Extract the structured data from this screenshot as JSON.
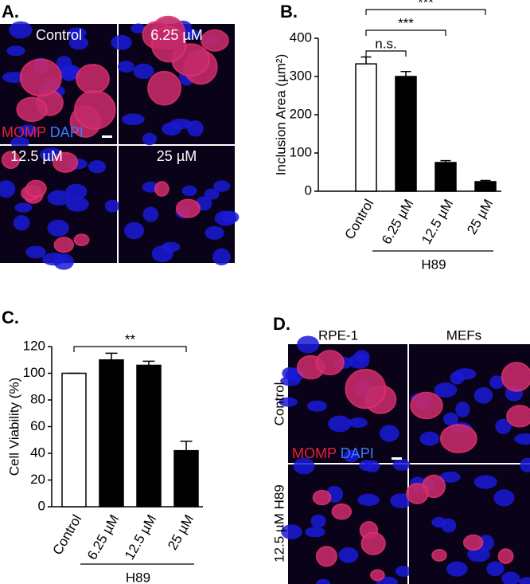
{
  "panels": {
    "a": {
      "label": "A.",
      "image_labels": [
        "Control",
        "6.25 µM",
        "12.5 µM",
        "25 µM"
      ],
      "stain": [
        "MOMP",
        "DAPI"
      ]
    },
    "b": {
      "label": "B."
    },
    "c": {
      "label": "C."
    },
    "d": {
      "label": "D.",
      "column_labels": [
        "RPE-1",
        "MEFs"
      ],
      "row_labels": [
        "Control",
        "12.5 µM H89"
      ],
      "stain": [
        "MOMP",
        "DAPI"
      ]
    }
  },
  "chart_data": [
    {
      "type": "bar",
      "y_label": "Inclusion Area (µm²)",
      "categories": [
        "Control",
        "6.25 µM",
        "12.5 µM",
        "25 µM"
      ],
      "values": [
        333,
        300,
        75,
        25
      ],
      "errors": [
        18,
        13,
        5,
        3
      ],
      "bar_colors": [
        "#ffffff",
        "#000000",
        "#000000",
        "#000000"
      ],
      "edge_color": "#000000",
      "ylim": [
        0,
        400
      ],
      "yticks": [
        0,
        100,
        200,
        300,
        400
      ],
      "group_label": "H89",
      "annotations": [
        "n.s.",
        "***",
        "***"
      ]
    },
    {
      "type": "bar",
      "y_label": "Cell Viability (%)",
      "categories": [
        "Control",
        "6.25 µM",
        "12.5 µM",
        "25 µM"
      ],
      "values": [
        100,
        110,
        106,
        42
      ],
      "errors": [
        0,
        5,
        3,
        7
      ],
      "bar_colors": [
        "#ffffff",
        "#000000",
        "#000000",
        "#000000"
      ],
      "edge_color": "#000000",
      "ylim": [
        0,
        120
      ],
      "yticks": [
        0,
        20,
        40,
        60,
        80,
        100,
        120
      ],
      "group_label": "H89",
      "annotations": [
        "**"
      ]
    }
  ]
}
